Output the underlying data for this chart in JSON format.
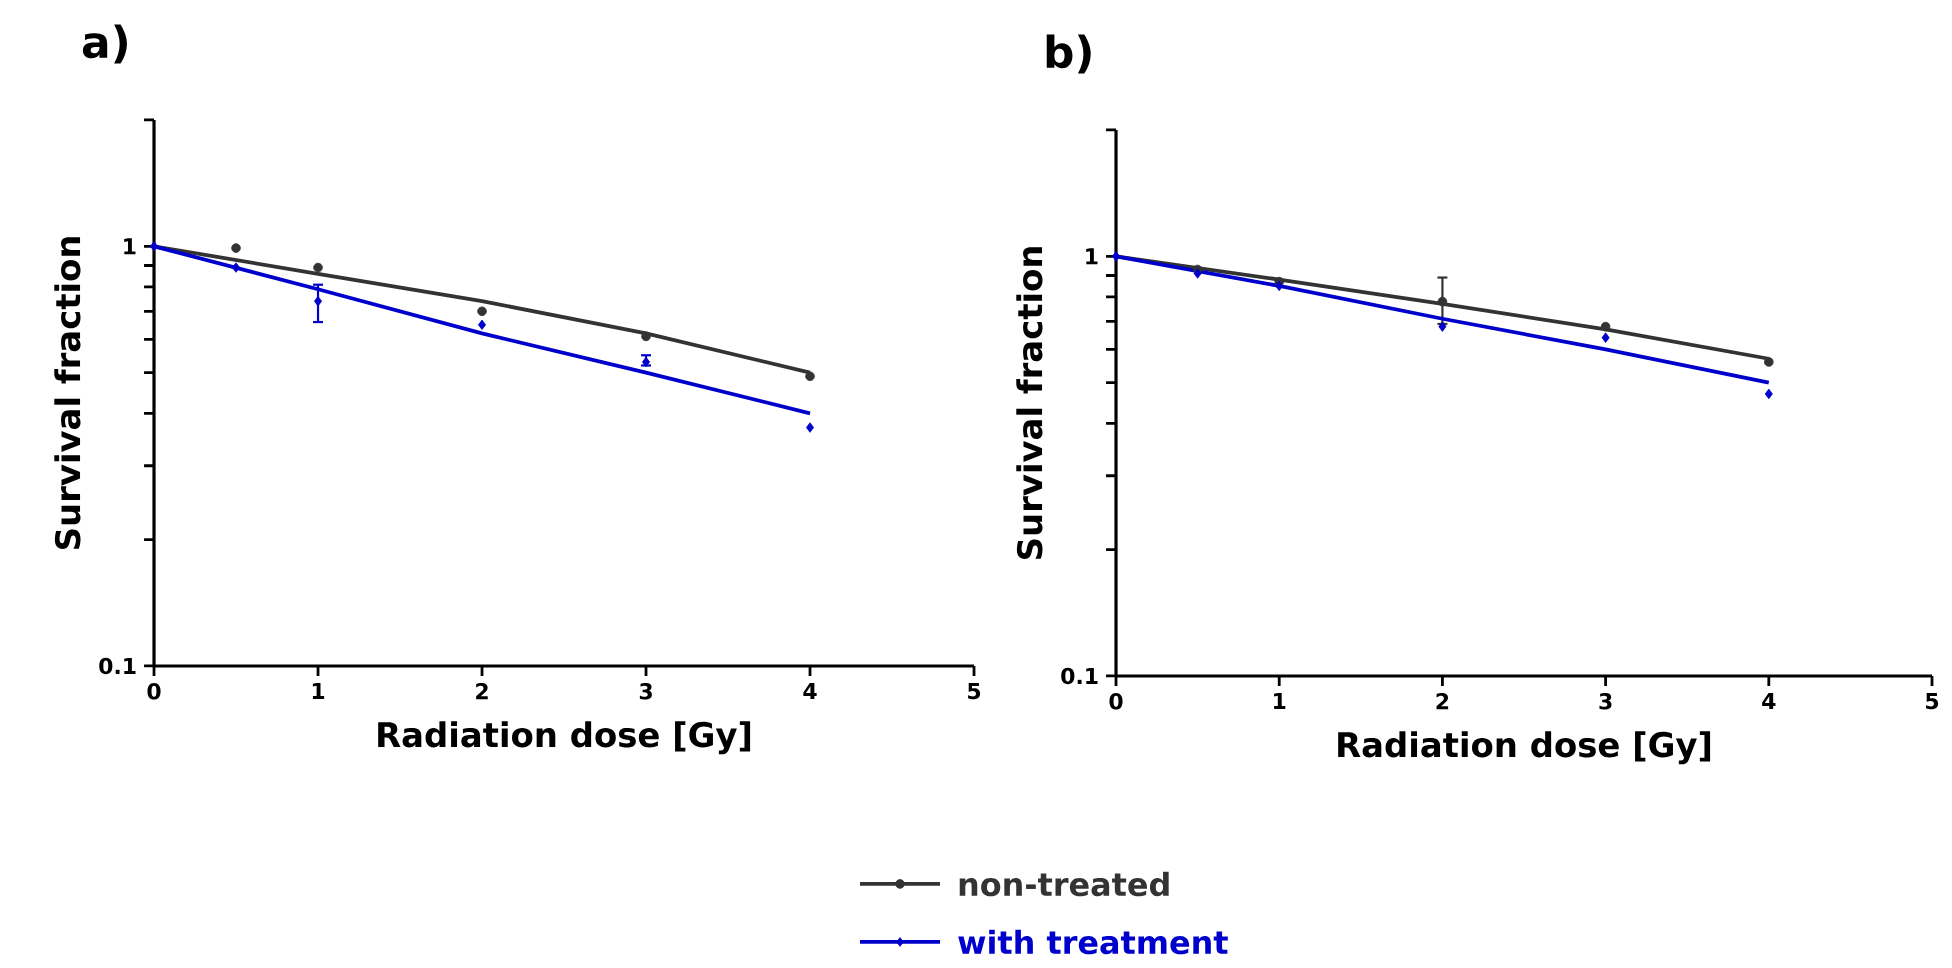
{
  "chart_data": [
    {
      "type": "scatter",
      "title": "a)",
      "xlabel": "Radiation dose [Gy]",
      "ylabel": "Survival fraction",
      "log": "y",
      "legend": "bottom",
      "xlim": [
        0,
        5
      ],
      "xticks": [
        0,
        1,
        2,
        3,
        4,
        5
      ],
      "ylim": [
        0.1,
        2
      ],
      "yticks": [
        0.1,
        {
          "value": 0.2,
          "label": null
        },
        {
          "value": 0.3,
          "label": null
        },
        {
          "value": 0.4,
          "label": null
        },
        {
          "value": 0.5,
          "label": null
        },
        {
          "value": 0.6,
          "label": null
        },
        {
          "value": 0.7,
          "label": null
        },
        {
          "value": 0.8,
          "label": null
        },
        {
          "value": 0.9,
          "label": null
        },
        1,
        {
          "value": 2,
          "label": null
        }
      ],
      "series": [
        {
          "name": "non-treated",
          "color": "#333333",
          "marker": "circle",
          "x": [
            0.5,
            1,
            2,
            3,
            4
          ],
          "values": [
            0.99,
            0.89,
            0.7,
            0.61,
            0.49
          ]
        },
        {
          "name": "with treatment",
          "color": "#0000cc",
          "marker": "diamond",
          "x": [
            0,
            0.5,
            1,
            2,
            3,
            4
          ],
          "values": [
            1,
            0.89,
            0.74,
            0.65,
            0.53,
            0.37
          ],
          "errors": [
            null,
            null,
            [
              0.66,
              0.81
            ],
            null,
            [
              0.52,
              0.55
            ],
            null
          ]
        },
        {
          "type": "line",
          "color": "#333333",
          "marker": "none",
          "x": [
            0,
            1,
            2,
            3,
            4
          ],
          "values": [
            1,
            0.86,
            0.74,
            0.62,
            0.5
          ]
        },
        {
          "type": "line",
          "color": "#0000cc",
          "marker": "none",
          "x": [
            0,
            1,
            2,
            3,
            4
          ],
          "values": [
            1,
            0.79,
            0.62,
            0.5,
            0.4
          ]
        }
      ]
    },
    {
      "type": "scatter",
      "title": "b)",
      "xlabel": "Radiation dose [Gy]",
      "ylabel": "Survival fraction",
      "log": "y",
      "xlim": [
        0,
        5
      ],
      "xticks": [
        0,
        1,
        2,
        3,
        4,
        5
      ],
      "ylim": [
        0.1,
        2
      ],
      "yticks": [
        0.1,
        {
          "value": 0.2,
          "label": null
        },
        {
          "value": 0.3,
          "label": null
        },
        {
          "value": 0.4,
          "label": null
        },
        {
          "value": 0.5,
          "label": null
        },
        {
          "value": 0.6,
          "label": null
        },
        {
          "value": 0.7,
          "label": null
        },
        {
          "value": 0.8,
          "label": null
        },
        {
          "value": 0.9,
          "label": null
        },
        1,
        {
          "value": 2,
          "label": null
        }
      ],
      "series": [
        {
          "color": "#333333",
          "marker": "circle",
          "x": [
            0.5,
            1,
            2,
            3,
            4
          ],
          "values": [
            0.93,
            0.87,
            0.78,
            0.68,
            0.56
          ],
          "errors": [
            null,
            null,
            [
              0.69,
              0.89
            ],
            null,
            null
          ]
        },
        {
          "color": "#0000cc",
          "marker": "diamond",
          "x": [
            0,
            0.5,
            1,
            2,
            3,
            4
          ],
          "values": [
            1,
            0.91,
            0.85,
            0.68,
            0.64,
            0.47
          ]
        },
        {
          "type": "line",
          "color": "#333333",
          "marker": "none",
          "x": [
            0,
            1,
            2,
            3,
            4
          ],
          "values": [
            1,
            0.88,
            0.77,
            0.67,
            0.57
          ]
        },
        {
          "type": "line",
          "color": "#0000cc",
          "marker": "none",
          "x": [
            0,
            1,
            2,
            3,
            4
          ],
          "values": [
            1,
            0.85,
            0.71,
            0.6,
            0.5
          ]
        }
      ]
    }
  ]
}
